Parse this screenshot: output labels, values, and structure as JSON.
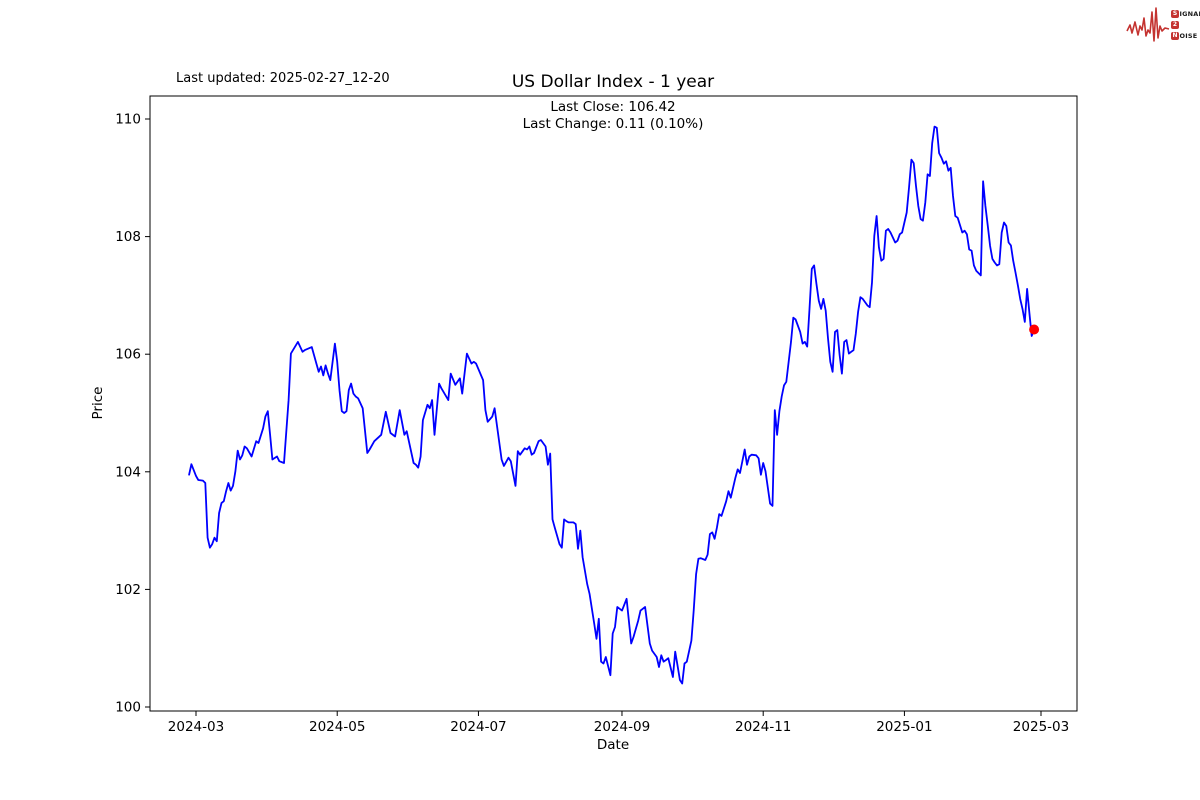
{
  "header": {
    "last_updated": "Last updated: 2025-02-27_12-20"
  },
  "logo": {
    "letters": [
      "S",
      "IGNAL",
      "2",
      "N",
      "OISE"
    ],
    "accent_color": "#c43330"
  },
  "chart_data": {
    "type": "line",
    "title": "US Dollar Index - 1 year",
    "subtitle_lines": [
      "Last Close: 106.42",
      "Last Change: 0.11 (0.10%)"
    ],
    "xlabel": "Date",
    "ylabel": "Price",
    "start_date": "2024-02-27",
    "last_close": 106.42,
    "last_change": "0.11 (0.10%)",
    "line_color": "#0000ff",
    "last_point_color": "#ff0000",
    "grid": false,
    "legend": false,
    "ylim": [
      99.93,
      110.39
    ],
    "y_ticks": [
      100,
      102,
      104,
      106,
      108,
      110
    ],
    "x_ticks": [
      {
        "label": "2024-03",
        "day": 3
      },
      {
        "label": "2024-05",
        "day": 64
      },
      {
        "label": "2024-07",
        "day": 125
      },
      {
        "label": "2024-09",
        "day": 187
      },
      {
        "label": "2024-11",
        "day": 248
      },
      {
        "label": "2025-01",
        "day": 309
      },
      {
        "label": "2025-03",
        "day": 368
      }
    ],
    "points": [
      [
        0,
        103.95
      ],
      [
        1,
        104.13
      ],
      [
        3,
        103.93
      ],
      [
        4,
        103.86
      ],
      [
        6,
        103.85
      ],
      [
        7,
        103.81
      ],
      [
        8,
        102.88
      ],
      [
        9,
        102.71
      ],
      [
        10,
        102.77
      ],
      [
        11,
        102.88
      ],
      [
        12,
        102.82
      ],
      [
        13,
        103.3
      ],
      [
        14,
        103.47
      ],
      [
        15,
        103.5
      ],
      [
        16,
        103.67
      ],
      [
        17,
        103.81
      ],
      [
        18,
        103.68
      ],
      [
        19,
        103.76
      ],
      [
        20,
        104.01
      ],
      [
        21,
        104.36
      ],
      [
        22,
        104.21
      ],
      [
        23,
        104.28
      ],
      [
        24,
        104.43
      ],
      [
        25,
        104.4
      ],
      [
        27,
        104.26
      ],
      [
        29,
        104.52
      ],
      [
        30,
        104.49
      ],
      [
        32,
        104.74
      ],
      [
        33,
        104.94
      ],
      [
        34,
        105.03
      ],
      [
        35,
        104.63
      ],
      [
        36,
        104.21
      ],
      [
        38,
        104.26
      ],
      [
        39,
        104.18
      ],
      [
        41,
        104.15
      ],
      [
        43,
        105.22
      ],
      [
        44,
        106.01
      ],
      [
        47,
        106.21
      ],
      [
        49,
        106.04
      ],
      [
        50,
        106.07
      ],
      [
        53,
        106.12
      ],
      [
        54,
        105.98
      ],
      [
        55,
        105.84
      ],
      [
        56,
        105.7
      ],
      [
        57,
        105.79
      ],
      [
        58,
        105.64
      ],
      [
        59,
        105.81
      ],
      [
        60,
        105.67
      ],
      [
        61,
        105.56
      ],
      [
        63,
        106.18
      ],
      [
        64,
        105.87
      ],
      [
        65,
        105.39
      ],
      [
        66,
        105.03
      ],
      [
        67,
        105.0
      ],
      [
        68,
        105.03
      ],
      [
        69,
        105.39
      ],
      [
        70,
        105.5
      ],
      [
        71,
        105.33
      ],
      [
        72,
        105.28
      ],
      [
        73,
        105.25
      ],
      [
        75,
        105.08
      ],
      [
        77,
        104.32
      ],
      [
        78,
        104.38
      ],
      [
        80,
        104.52
      ],
      [
        83,
        104.63
      ],
      [
        85,
        105.02
      ],
      [
        87,
        104.66
      ],
      [
        89,
        104.6
      ],
      [
        91,
        105.05
      ],
      [
        93,
        104.63
      ],
      [
        94,
        104.69
      ],
      [
        97,
        104.15
      ],
      [
        98,
        104.12
      ],
      [
        99,
        104.07
      ],
      [
        100,
        104.26
      ],
      [
        101,
        104.88
      ],
      [
        103,
        105.14
      ],
      [
        104,
        105.08
      ],
      [
        105,
        105.22
      ],
      [
        106,
        104.63
      ],
      [
        108,
        105.5
      ],
      [
        109,
        105.42
      ],
      [
        112,
        105.22
      ],
      [
        113,
        105.67
      ],
      [
        115,
        105.48
      ],
      [
        117,
        105.59
      ],
      [
        118,
        105.33
      ],
      [
        120,
        106.01
      ],
      [
        122,
        105.84
      ],
      [
        123,
        105.87
      ],
      [
        124,
        105.84
      ],
      [
        127,
        105.56
      ],
      [
        128,
        105.05
      ],
      [
        129,
        104.85
      ],
      [
        131,
        104.94
      ],
      [
        132,
        105.08
      ],
      [
        135,
        104.21
      ],
      [
        136,
        104.1
      ],
      [
        138,
        104.24
      ],
      [
        139,
        104.18
      ],
      [
        141,
        103.76
      ],
      [
        142,
        104.35
      ],
      [
        143,
        104.29
      ],
      [
        145,
        104.4
      ],
      [
        146,
        104.38
      ],
      [
        147,
        104.43
      ],
      [
        148,
        104.29
      ],
      [
        149,
        104.32
      ],
      [
        151,
        104.52
      ],
      [
        152,
        104.54
      ],
      [
        154,
        104.43
      ],
      [
        155,
        104.12
      ],
      [
        156,
        104.31
      ],
      [
        157,
        103.19
      ],
      [
        158,
        103.05
      ],
      [
        160,
        102.77
      ],
      [
        161,
        102.71
      ],
      [
        162,
        103.19
      ],
      [
        163,
        103.16
      ],
      [
        164,
        103.14
      ],
      [
        166,
        103.14
      ],
      [
        167,
        103.11
      ],
      [
        168,
        102.69
      ],
      [
        169,
        103.0
      ],
      [
        170,
        102.55
      ],
      [
        172,
        102.09
      ],
      [
        173,
        101.92
      ],
      [
        175,
        101.42
      ],
      [
        176,
        101.16
      ],
      [
        177,
        101.5
      ],
      [
        178,
        100.77
      ],
      [
        179,
        100.74
      ],
      [
        180,
        100.85
      ],
      [
        182,
        100.54
      ],
      [
        183,
        101.25
      ],
      [
        184,
        101.36
      ],
      [
        185,
        101.7
      ],
      [
        186,
        101.67
      ],
      [
        187,
        101.64
      ],
      [
        189,
        101.84
      ],
      [
        191,
        101.08
      ],
      [
        192,
        101.19
      ],
      [
        194,
        101.47
      ],
      [
        195,
        101.64
      ],
      [
        197,
        101.7
      ],
      [
        199,
        101.08
      ],
      [
        200,
        100.96
      ],
      [
        202,
        100.85
      ],
      [
        203,
        100.68
      ],
      [
        204,
        100.88
      ],
      [
        205,
        100.77
      ],
      [
        206,
        100.8
      ],
      [
        207,
        100.83
      ],
      [
        209,
        100.51
      ],
      [
        210,
        100.94
      ],
      [
        211,
        100.71
      ],
      [
        212,
        100.46
      ],
      [
        213,
        100.4
      ],
      [
        214,
        100.74
      ],
      [
        215,
        100.77
      ],
      [
        217,
        101.13
      ],
      [
        218,
        101.64
      ],
      [
        219,
        102.26
      ],
      [
        220,
        102.52
      ],
      [
        221,
        102.53
      ],
      [
        223,
        102.5
      ],
      [
        224,
        102.59
      ],
      [
        225,
        102.94
      ],
      [
        226,
        102.97
      ],
      [
        227,
        102.86
      ],
      [
        228,
        103.05
      ],
      [
        229,
        103.28
      ],
      [
        230,
        103.25
      ],
      [
        232,
        103.5
      ],
      [
        233,
        103.67
      ],
      [
        234,
        103.56
      ],
      [
        235,
        103.73
      ],
      [
        236,
        103.9
      ],
      [
        237,
        104.04
      ],
      [
        238,
        103.98
      ],
      [
        240,
        104.38
      ],
      [
        241,
        104.12
      ],
      [
        242,
        104.26
      ],
      [
        243,
        104.29
      ],
      [
        245,
        104.28
      ],
      [
        246,
        104.23
      ],
      [
        247,
        103.95
      ],
      [
        248,
        104.15
      ],
      [
        249,
        104.01
      ],
      [
        251,
        103.46
      ],
      [
        252,
        103.42
      ],
      [
        253,
        105.05
      ],
      [
        254,
        104.63
      ],
      [
        255,
        105.03
      ],
      [
        256,
        105.28
      ],
      [
        257,
        105.47
      ],
      [
        258,
        105.53
      ],
      [
        260,
        106.21
      ],
      [
        261,
        106.62
      ],
      [
        262,
        106.59
      ],
      [
        264,
        106.38
      ],
      [
        265,
        106.18
      ],
      [
        266,
        106.21
      ],
      [
        267,
        106.13
      ],
      [
        268,
        106.77
      ],
      [
        269,
        107.45
      ],
      [
        270,
        107.51
      ],
      [
        271,
        107.2
      ],
      [
        272,
        106.91
      ],
      [
        273,
        106.77
      ],
      [
        274,
        106.94
      ],
      [
        275,
        106.74
      ],
      [
        276,
        106.27
      ],
      [
        277,
        105.87
      ],
      [
        278,
        105.7
      ],
      [
        279,
        106.38
      ],
      [
        280,
        106.41
      ],
      [
        281,
        105.99
      ],
      [
        282,
        105.67
      ],
      [
        283,
        106.21
      ],
      [
        284,
        106.24
      ],
      [
        285,
        106.01
      ],
      [
        286,
        106.04
      ],
      [
        287,
        106.07
      ],
      [
        288,
        106.35
      ],
      [
        289,
        106.72
      ],
      [
        290,
        106.97
      ],
      [
        291,
        106.94
      ],
      [
        293,
        106.83
      ],
      [
        294,
        106.8
      ],
      [
        295,
        107.22
      ],
      [
        296,
        108.01
      ],
      [
        297,
        108.35
      ],
      [
        298,
        107.82
      ],
      [
        299,
        107.59
      ],
      [
        300,
        107.62
      ],
      [
        301,
        108.1
      ],
      [
        302,
        108.13
      ],
      [
        303,
        108.07
      ],
      [
        305,
        107.9
      ],
      [
        306,
        107.93
      ],
      [
        307,
        108.04
      ],
      [
        308,
        108.07
      ],
      [
        309,
        108.24
      ],
      [
        310,
        108.41
      ],
      [
        311,
        108.83
      ],
      [
        312,
        109.31
      ],
      [
        313,
        109.25
      ],
      [
        314,
        108.86
      ],
      [
        315,
        108.52
      ],
      [
        316,
        108.3
      ],
      [
        317,
        108.27
      ],
      [
        318,
        108.58
      ],
      [
        319,
        109.06
      ],
      [
        320,
        109.03
      ],
      [
        321,
        109.59
      ],
      [
        322,
        109.87
      ],
      [
        323,
        109.85
      ],
      [
        324,
        109.42
      ],
      [
        325,
        109.34
      ],
      [
        326,
        109.24
      ],
      [
        327,
        109.28
      ],
      [
        328,
        109.12
      ],
      [
        329,
        109.17
      ],
      [
        330,
        108.69
      ],
      [
        331,
        108.35
      ],
      [
        332,
        108.32
      ],
      [
        334,
        108.07
      ],
      [
        335,
        108.1
      ],
      [
        336,
        108.04
      ],
      [
        337,
        107.78
      ],
      [
        338,
        107.76
      ],
      [
        339,
        107.51
      ],
      [
        340,
        107.42
      ],
      [
        342,
        107.34
      ],
      [
        343,
        108.94
      ],
      [
        344,
        108.52
      ],
      [
        345,
        108.18
      ],
      [
        346,
        107.84
      ],
      [
        347,
        107.62
      ],
      [
        348,
        107.56
      ],
      [
        349,
        107.51
      ],
      [
        350,
        107.53
      ],
      [
        351,
        108.07
      ],
      [
        352,
        108.24
      ],
      [
        353,
        108.18
      ],
      [
        354,
        107.9
      ],
      [
        355,
        107.85
      ],
      [
        356,
        107.59
      ],
      [
        357,
        107.39
      ],
      [
        358,
        107.17
      ],
      [
        359,
        106.94
      ],
      [
        360,
        106.77
      ],
      [
        361,
        106.55
      ],
      [
        362,
        107.11
      ],
      [
        363,
        106.7
      ],
      [
        364,
        106.31
      ],
      [
        365,
        106.42
      ]
    ]
  }
}
